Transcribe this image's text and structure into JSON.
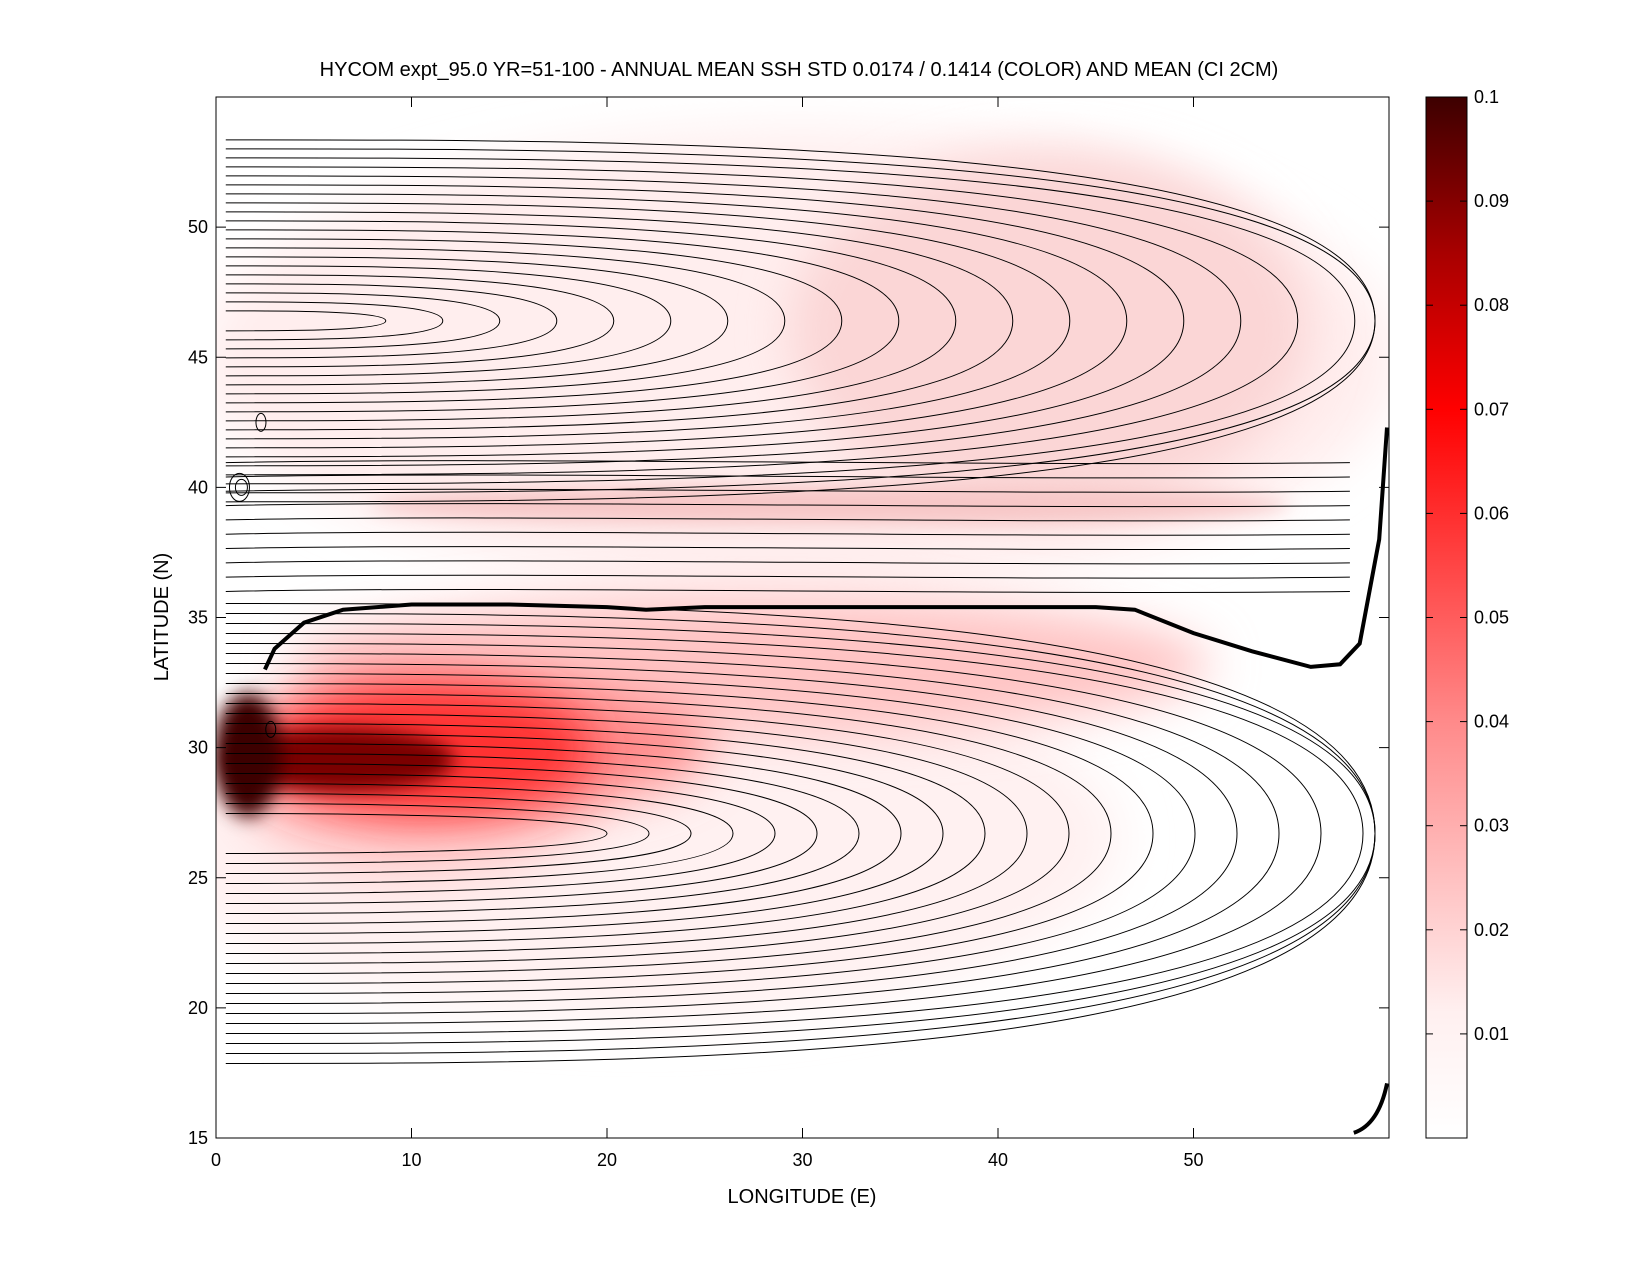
{
  "title": "HYCOM expt_95.0 YR=51-100 - ANNUAL MEAN SSH STD 0.0174 / 0.1414 (COLOR) AND MEAN (CI 2CM)",
  "chart_data": {
    "type": "heatmap",
    "title": "HYCOM expt_95.0 YR=51-100 - ANNUAL MEAN SSH STD 0.0174 / 0.1414 (COLOR) AND MEAN (CI 2CM)",
    "xlabel": "LONGITUDE (E)",
    "ylabel": "LATITUDE (N)",
    "xlim": [
      0,
      60
    ],
    "ylim": [
      15,
      55
    ],
    "xticks": [
      0,
      10,
      20,
      30,
      40,
      50
    ],
    "yticks": [
      15,
      20,
      25,
      30,
      35,
      40,
      45,
      50
    ],
    "colorbar": {
      "ticks": [
        0.01,
        0.02,
        0.03,
        0.04,
        0.05,
        0.06,
        0.07,
        0.08,
        0.09,
        0.1
      ],
      "range": [
        0,
        0.1
      ],
      "colormap": [
        "#ffffff",
        "#ff0000",
        "#3d0000"
      ]
    },
    "std_maxima": [
      {
        "lon": 4,
        "lat": 29.2,
        "std": 0.1
      },
      {
        "lon": 12,
        "lat": 29.5,
        "std": 0.075
      },
      {
        "lon": 18,
        "lat": 29.5,
        "std": 0.05
      },
      {
        "lon": 30,
        "lat": 33.2,
        "std": 0.035
      },
      {
        "lon": 38,
        "lat": 38.8,
        "std": 0.025
      },
      {
        "lon": 42,
        "lat": 47,
        "std": 0.02
      }
    ],
    "zero_contour": [
      [
        2.5,
        33
      ],
      [
        3,
        33.8
      ],
      [
        4.5,
        34.8
      ],
      [
        6.5,
        35.3
      ],
      [
        10,
        35.5
      ],
      [
        15,
        35.5
      ],
      [
        20,
        35.4
      ],
      [
        22,
        35.3
      ],
      [
        25,
        35.4
      ],
      [
        30,
        35.4
      ],
      [
        35,
        35.4
      ],
      [
        40,
        35.4
      ],
      [
        45,
        35.4
      ],
      [
        47,
        35.3
      ],
      [
        50,
        34.4
      ],
      [
        53,
        33.7
      ],
      [
        56,
        33.1
      ],
      [
        57.5,
        33.2
      ],
      [
        58.5,
        34
      ],
      [
        59.5,
        38
      ],
      [
        59.9,
        42.3
      ]
    ]
  }
}
